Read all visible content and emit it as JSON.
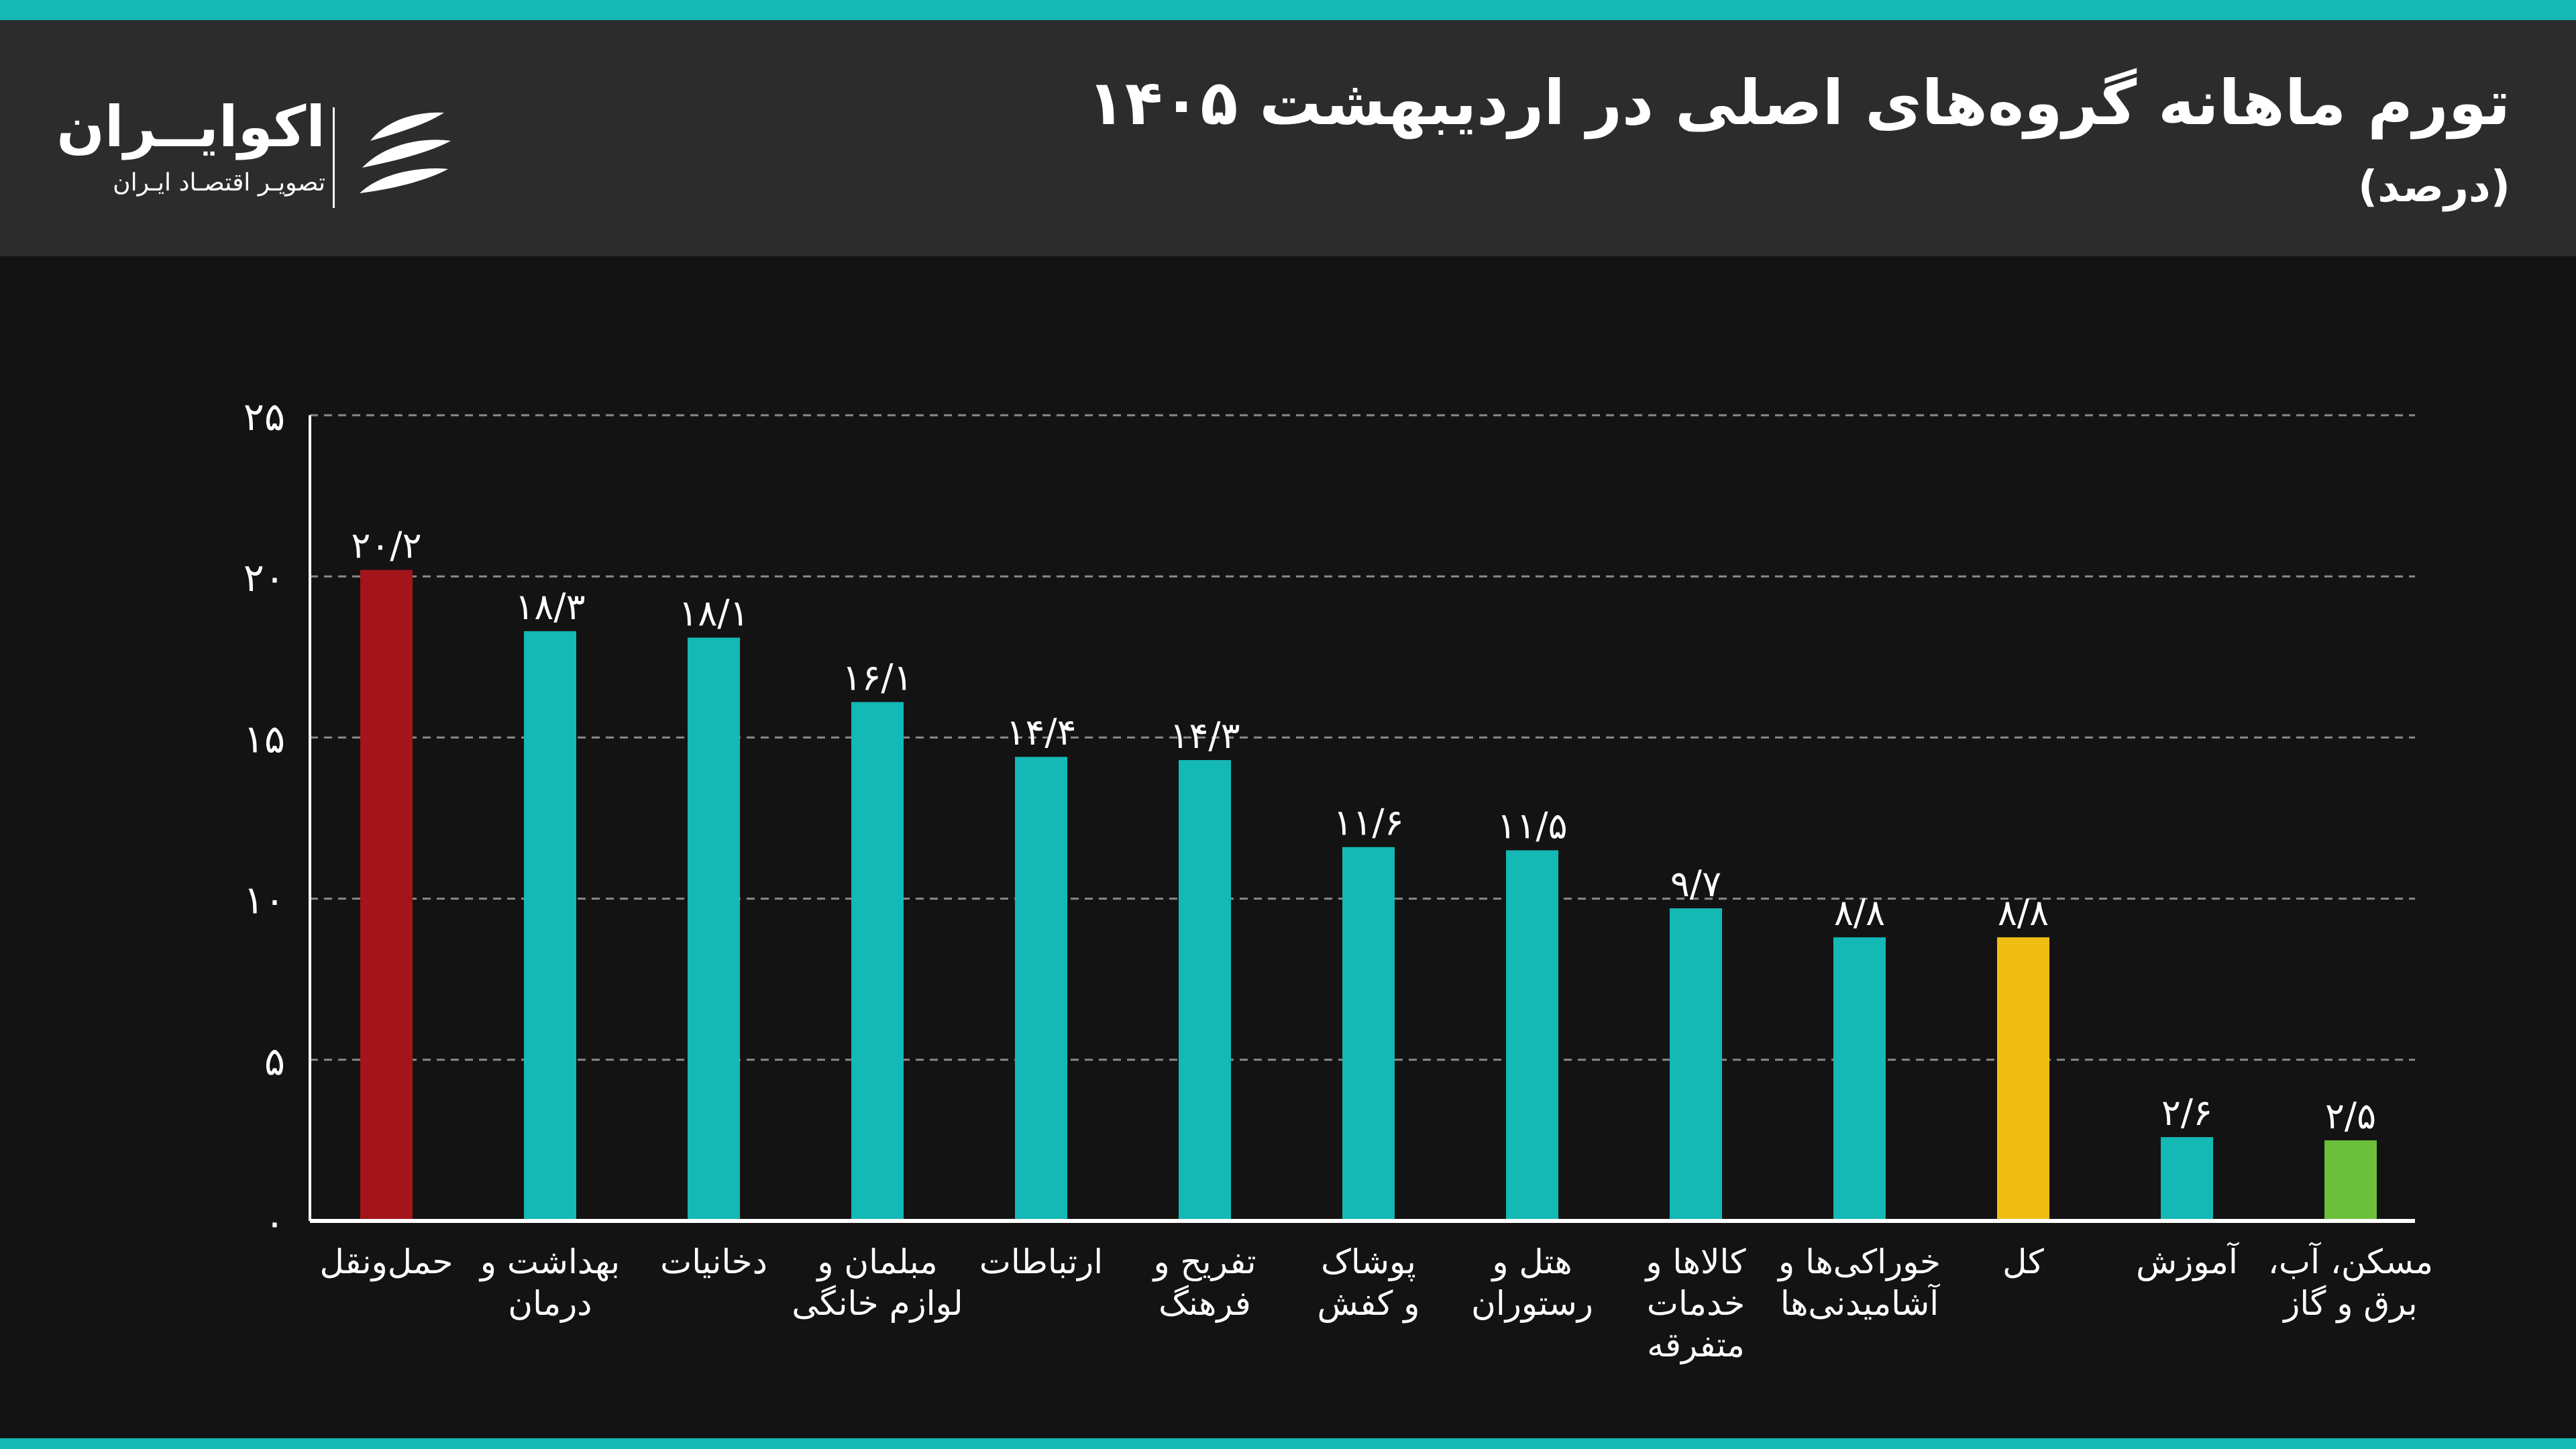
{
  "header": {
    "title": "تورم ماهانه گروه‌های اصلی در اردیبهشت ۱۴۰۵",
    "subtitle": "(درصد)"
  },
  "brand": {
    "name": "اکوایــران",
    "tagline": "تصویـر اقتصـاد ایـران",
    "logo_icon": "ecoiran-logo"
  },
  "colors": {
    "accent": "#14b8b5",
    "highlight_red": "#a3141b",
    "highlight_yellow": "#f0be12",
    "highlight_green": "#6cbf3a"
  },
  "chart_data": {
    "type": "bar",
    "categories": [
      [
        "حمل‌ونقل"
      ],
      [
        "بهداشت و",
        "درمان"
      ],
      [
        "دخانیات"
      ],
      [
        "مبلمان و",
        "لوازم خانگی"
      ],
      [
        "ارتباطات"
      ],
      [
        "تفریح و",
        "فرهنگ"
      ],
      [
        "پوشاک",
        "و کفش"
      ],
      [
        "هتل و",
        "رستوران"
      ],
      [
        "کالاها و",
        "خدمات",
        "متفرقه"
      ],
      [
        "خوراکی‌ها و",
        "آشامیدنی‌ها"
      ],
      [
        "کل"
      ],
      [
        "آموزش"
      ],
      [
        "مسکن، آب،",
        "برق و گاز"
      ]
    ],
    "values": [
      20.2,
      18.3,
      18.1,
      16.1,
      14.4,
      14.3,
      11.6,
      11.5,
      9.7,
      8.8,
      8.8,
      2.6,
      2.5
    ],
    "value_labels": [
      "۲۰/۲",
      "۱۸/۳",
      "۱۸/۱",
      "۱۶/۱",
      "۱۴/۴",
      "۱۴/۳",
      "۱۱/۶",
      "۱۱/۵",
      "۹/۷",
      "۸/۸",
      "۸/۸",
      "۲/۶",
      "۲/۵"
    ],
    "bar_colors": [
      "#a3141b",
      "#14b8b5",
      "#14b8b5",
      "#14b8b5",
      "#14b8b5",
      "#14b8b5",
      "#14b8b5",
      "#14b8b5",
      "#14b8b5",
      "#14b8b5",
      "#f0be12",
      "#14b8b5",
      "#6cbf3a"
    ],
    "ylim": [
      0,
      25
    ],
    "yticks": [
      0,
      5,
      10,
      15,
      20,
      25
    ],
    "ytick_labels": [
      "۰",
      "۵",
      "۱۰",
      "۱۵",
      "۲۰",
      "۲۵"
    ],
    "grid": true,
    "grid_style": "dashed",
    "xlabel": "",
    "ylabel": ""
  }
}
